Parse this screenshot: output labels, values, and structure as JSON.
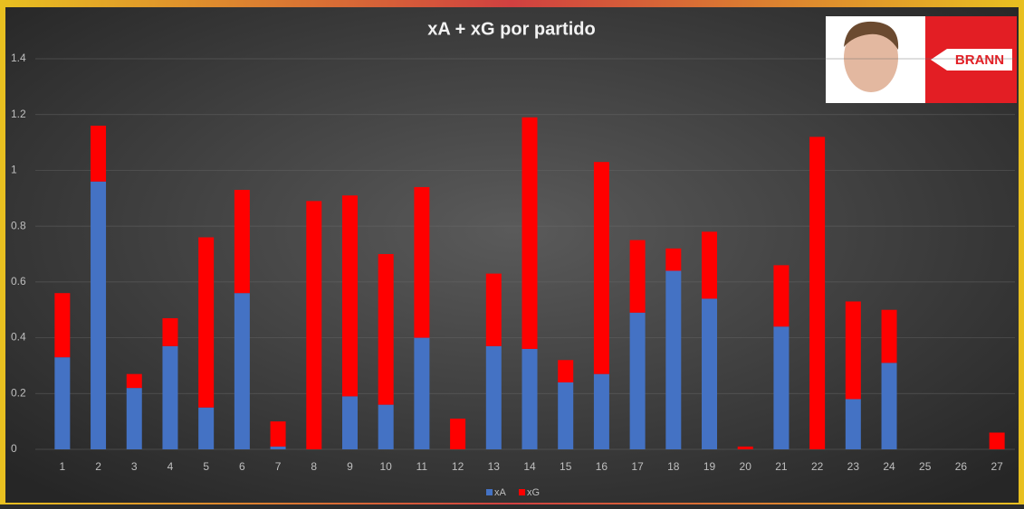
{
  "chart_data": {
    "type": "stacked_bar",
    "title": "xA + xG por partido",
    "categories": [
      "1",
      "2",
      "3",
      "4",
      "5",
      "6",
      "7",
      "8",
      "9",
      "10",
      "11",
      "12",
      "13",
      "14",
      "15",
      "16",
      "17",
      "18",
      "19",
      "20",
      "21",
      "22",
      "23",
      "24",
      "25",
      "26",
      "27"
    ],
    "series": [
      {
        "name": "xA",
        "color": "#4472c4",
        "values": [
          0.33,
          0.96,
          0.22,
          0.37,
          0.15,
          0.56,
          0.01,
          0,
          0.19,
          0.16,
          0.4,
          0,
          0.37,
          0.36,
          0.24,
          0.27,
          0.49,
          0.64,
          0.54,
          0,
          0.44,
          0,
          0.18,
          0.31,
          0,
          0,
          0
        ]
      },
      {
        "name": "xG",
        "color": "#ff0000",
        "values": [
          0.23,
          0.2,
          0.05,
          0.1,
          0.61,
          0.37,
          0.09,
          0.89,
          0.72,
          0.54,
          0.54,
          0.11,
          0.26,
          0.83,
          0.08,
          0.76,
          0.26,
          0.08,
          0.24,
          0.01,
          0.22,
          1.12,
          0.35,
          0.19,
          0,
          0,
          0.06
        ]
      }
    ],
    "ylim": [
      0,
      1.4
    ],
    "yticks": [
      0,
      0.2,
      0.4,
      0.6,
      0.8,
      1,
      1.2,
      1.4
    ],
    "grid": true,
    "legend": "bottom"
  },
  "badge": {
    "text": "BRANN"
  }
}
